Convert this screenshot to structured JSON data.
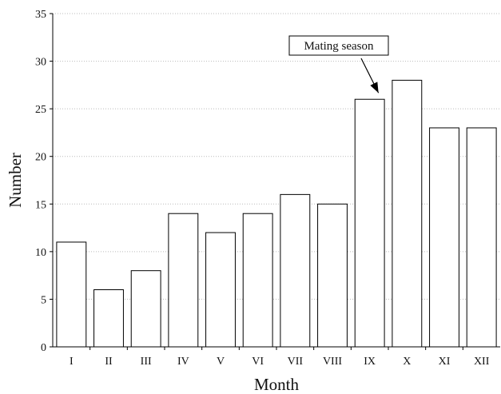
{
  "chart_data": {
    "type": "bar",
    "title": "",
    "xlabel": "Month",
    "ylabel": "Number",
    "categories": [
      "I",
      "II",
      "III",
      "IV",
      "V",
      "VI",
      "VII",
      "VIII",
      "IX",
      "X",
      "XI",
      "XII"
    ],
    "values": [
      11,
      6,
      8,
      14,
      12,
      14,
      16,
      15,
      26,
      28,
      23,
      23
    ],
    "ylim": [
      0,
      35
    ],
    "yticks": [
      0,
      5,
      10,
      15,
      20,
      25,
      30,
      35
    ],
    "grid": "horizontal dotted",
    "colors": {
      "bar_fill": "#ffffff",
      "bar_stroke": "#000000",
      "grid": "#bbbbbb"
    },
    "annotation": {
      "text": "Mating season",
      "points_to": "IX"
    }
  }
}
